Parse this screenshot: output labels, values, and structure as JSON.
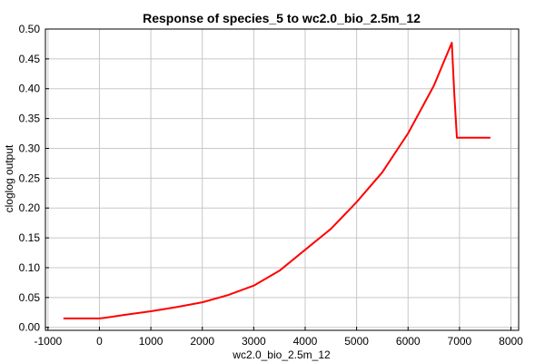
{
  "chart_data": {
    "type": "line",
    "title": "Response of species_5 to wc2.0_bio_2.5m_12",
    "xlabel": "wc2.0_bio_2.5m_12",
    "ylabel": "cloglog output",
    "xlim": [
      -1050,
      8150
    ],
    "ylim": [
      -0.005,
      0.5
    ],
    "x_ticks": [
      -1000,
      0,
      1000,
      2000,
      3000,
      4000,
      5000,
      6000,
      7000,
      8000
    ],
    "y_ticks": [
      0.0,
      0.05,
      0.1,
      0.15,
      0.2,
      0.25,
      0.3,
      0.35,
      0.4,
      0.45,
      0.5
    ],
    "x_tick_labels": [
      "-1000",
      "0",
      "1000",
      "2000",
      "3000",
      "4000",
      "5000",
      "6000",
      "7000",
      "8000"
    ],
    "y_tick_labels": [
      "0.00",
      "0.05",
      "0.10",
      "0.15",
      "0.20",
      "0.25",
      "0.30",
      "0.35",
      "0.40",
      "0.45",
      "0.50"
    ],
    "grid": true,
    "legend": "none",
    "series": [
      {
        "color": "#ff0000",
        "x": [
          -700,
          0,
          100,
          500,
          1000,
          1500,
          2000,
          2500,
          3000,
          3500,
          4000,
          4500,
          5000,
          5500,
          6000,
          6500,
          6850,
          6900,
          6950,
          7600
        ],
        "y": [
          0.015,
          0.015,
          0.016,
          0.021,
          0.027,
          0.034,
          0.042,
          0.054,
          0.07,
          0.095,
          0.13,
          0.165,
          0.21,
          0.26,
          0.325,
          0.405,
          0.477,
          0.39,
          0.318,
          0.318
        ]
      }
    ]
  }
}
